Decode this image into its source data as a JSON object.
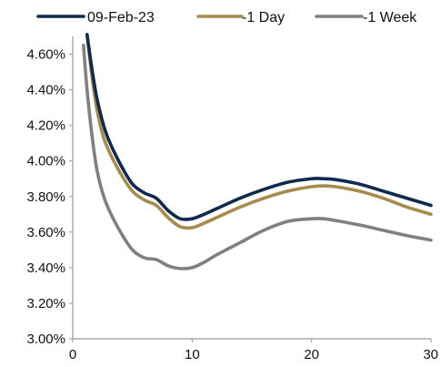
{
  "chart_data": {
    "type": "line",
    "title": "",
    "xlabel": "",
    "ylabel": "",
    "xlim": [
      0,
      30
    ],
    "ylim": [
      3.0,
      4.7
    ],
    "x_ticks": [
      0,
      10,
      20,
      30
    ],
    "x_tick_labels": [
      "0",
      "10",
      "20",
      "30"
    ],
    "y_ticks": [
      3.0,
      3.2,
      3.4,
      3.6,
      3.8,
      4.0,
      4.2,
      4.4,
      4.6
    ],
    "y_tick_labels": [
      "3.00%",
      "3.20%",
      "3.40%",
      "3.60%",
      "3.80%",
      "4.00%",
      "4.20%",
      "4.40%",
      "4.60%"
    ],
    "grid": false,
    "legend_position": "top",
    "series": [
      {
        "name": "09-Feb-23",
        "color": "#0f2a4f",
        "x": [
          1.2,
          1.6,
          2.0,
          2.5,
          3.0,
          4.0,
          5.0,
          6.0,
          7.0,
          8.0,
          9.0,
          10.0,
          11.0,
          12.0,
          14.0,
          16.0,
          18.0,
          20.0,
          21.0,
          22.0,
          24.0,
          26.0,
          28.0,
          30.0
        ],
        "y": [
          4.71,
          4.52,
          4.36,
          4.22,
          4.12,
          3.98,
          3.87,
          3.82,
          3.79,
          3.72,
          3.675,
          3.675,
          3.7,
          3.73,
          3.79,
          3.84,
          3.88,
          3.9,
          3.9,
          3.895,
          3.87,
          3.83,
          3.79,
          3.75
        ]
      },
      {
        "name": "-1 Day",
        "color": "#a68a4e",
        "x": [
          1.2,
          1.6,
          2.0,
          2.5,
          3.0,
          4.0,
          5.0,
          6.0,
          7.0,
          8.0,
          9.0,
          10.0,
          11.0,
          12.0,
          14.0,
          16.0,
          18.0,
          20.0,
          21.0,
          22.0,
          24.0,
          26.0,
          28.0,
          30.0
        ],
        "y": [
          4.71,
          4.48,
          4.3,
          4.15,
          4.06,
          3.93,
          3.83,
          3.78,
          3.75,
          3.68,
          3.63,
          3.625,
          3.65,
          3.68,
          3.74,
          3.79,
          3.83,
          3.855,
          3.86,
          3.855,
          3.83,
          3.79,
          3.74,
          3.7
        ]
      },
      {
        "name": "-1 Week",
        "color": "#808080",
        "x": [
          0.9,
          1.2,
          1.6,
          2.0,
          2.5,
          3.0,
          4.0,
          5.0,
          6.0,
          7.0,
          8.0,
          9.0,
          10.0,
          11.0,
          12.0,
          14.0,
          16.0,
          18.0,
          20.0,
          21.0,
          22.0,
          24.0,
          26.0,
          28.0,
          30.0
        ],
        "y": [
          4.65,
          4.4,
          4.15,
          3.96,
          3.82,
          3.73,
          3.6,
          3.5,
          3.455,
          3.445,
          3.41,
          3.395,
          3.4,
          3.43,
          3.47,
          3.54,
          3.61,
          3.66,
          3.675,
          3.675,
          3.665,
          3.64,
          3.61,
          3.58,
          3.555
        ]
      }
    ]
  }
}
